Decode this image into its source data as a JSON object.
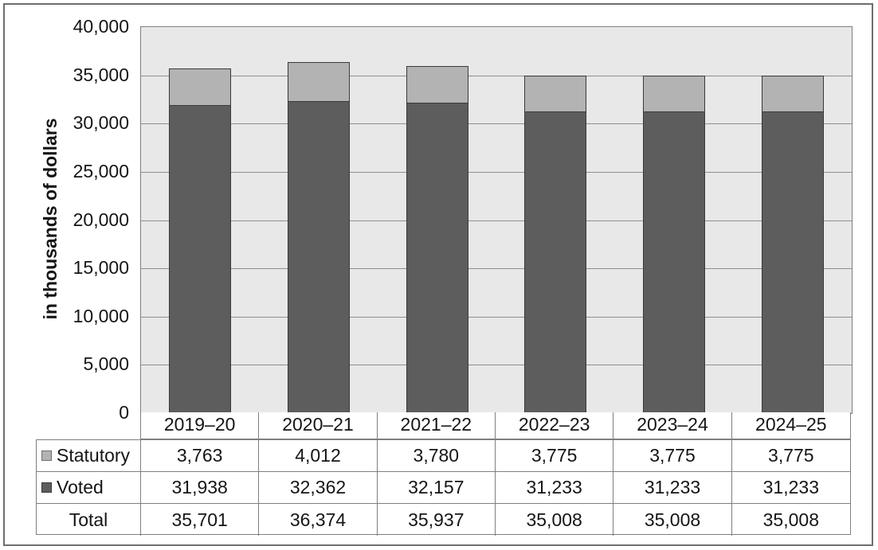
{
  "chart": {
    "y_axis_title": "in thousands of dollars",
    "colors": {
      "statutory_fill": "#b3b3b3",
      "voted_fill": "#5d5d5d",
      "bar_border": "#3a3a3a",
      "plot_background": "#e8e8e8",
      "gridline": "#8f8f8f",
      "table_border": "#7f7f7f",
      "frame_border": "#6e6e6e"
    }
  },
  "chart_data": {
    "type": "bar",
    "stacked": true,
    "title": "",
    "xlabel": "",
    "ylabel": "in thousands of dollars",
    "ylim": [
      0,
      40000
    ],
    "grid": true,
    "gridline_interval": 5000,
    "legend_position": "table-left",
    "categories": [
      "2019–20",
      "2020–21",
      "2021–22",
      "2022–23",
      "2023–24",
      "2024–25"
    ],
    "series": [
      {
        "name": "Statutory",
        "values": [
          3763,
          4012,
          3780,
          3775,
          3775,
          3775
        ]
      },
      {
        "name": "Voted",
        "values": [
          31938,
          32362,
          32157,
          31233,
          31233,
          31233
        ]
      }
    ],
    "totals": {
      "name": "Total",
      "values": [
        35701,
        36374,
        35937,
        35008,
        35008,
        35008
      ]
    },
    "y_ticks": [
      "0",
      "5,000",
      "10,000",
      "15,000",
      "20,000",
      "25,000",
      "30,000",
      "35,000",
      "40,000"
    ],
    "table_rows": [
      {
        "label": "Statutory",
        "swatch": "statutory",
        "values": [
          "3,763",
          "4,012",
          "3,780",
          "3,775",
          "3,775",
          "3,775"
        ]
      },
      {
        "label": "Voted",
        "swatch": "voted",
        "values": [
          "31,938",
          "32,362",
          "32,157",
          "31,233",
          "31,233",
          "31,233"
        ]
      },
      {
        "label": "Total",
        "swatch": null,
        "values": [
          "35,701",
          "36,374",
          "35,937",
          "35,008",
          "35,008",
          "35,008"
        ]
      }
    ]
  }
}
